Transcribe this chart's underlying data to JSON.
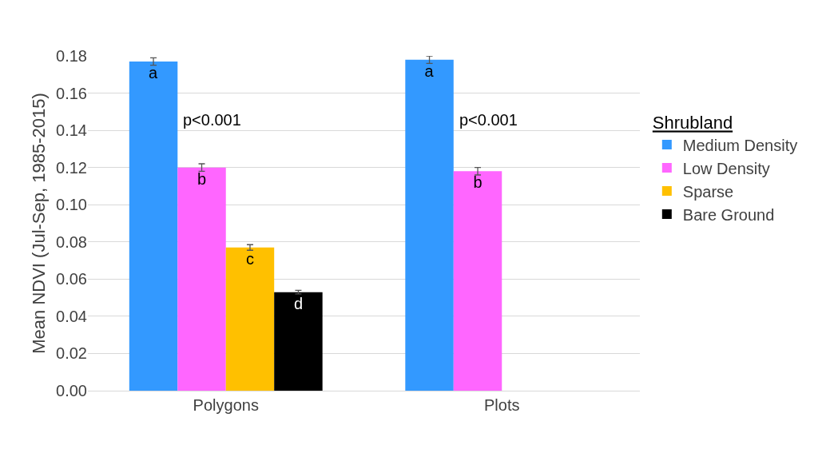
{
  "chart_data": {
    "type": "bar",
    "ylabel": "Mean NDVI (Jul-Sep, 1985-2015)",
    "legend_title": "Shrubland",
    "categories": [
      "Polygons",
      "Plots"
    ],
    "series": [
      {
        "name": "Medium Density",
        "color": "#3399ff",
        "values": [
          0.177,
          0.178
        ],
        "errors": [
          0.002,
          0.002
        ],
        "value_labels": [
          "a",
          "a"
        ]
      },
      {
        "name": "Low Density",
        "color": "#ff66ff",
        "values": [
          0.12,
          0.118
        ],
        "errors": [
          0.002,
          0.002
        ],
        "value_labels": [
          "b",
          "b"
        ]
      },
      {
        "name": "Sparse",
        "color": "#ffc000",
        "values": [
          0.077,
          null
        ],
        "errors": [
          0.0015,
          null
        ],
        "value_labels": [
          "c",
          null
        ]
      },
      {
        "name": "Bare Ground",
        "color": "#000000",
        "values": [
          0.053,
          null
        ],
        "errors": [
          0.001,
          null
        ],
        "value_labels": [
          "d",
          null
        ]
      }
    ],
    "ylim": [
      0,
      0.18
    ],
    "yticks": [
      {
        "value": 0,
        "label": "0.00"
      },
      {
        "value": 0.02,
        "label": "0.02"
      },
      {
        "value": 0.04,
        "label": "0.04"
      },
      {
        "value": 0.06,
        "label": "0.06"
      },
      {
        "value": 0.08,
        "label": "0.08"
      },
      {
        "value": 0.1,
        "label": "0.10"
      },
      {
        "value": 0.12,
        "label": "0.12"
      },
      {
        "value": 0.14,
        "label": "0.14"
      },
      {
        "value": 0.16,
        "label": "0.16"
      },
      {
        "value": 0.18,
        "label": "0.18"
      }
    ],
    "grid": "y",
    "legend": "right",
    "annotations": [
      "p<0.001",
      "p<0.001"
    ]
  }
}
